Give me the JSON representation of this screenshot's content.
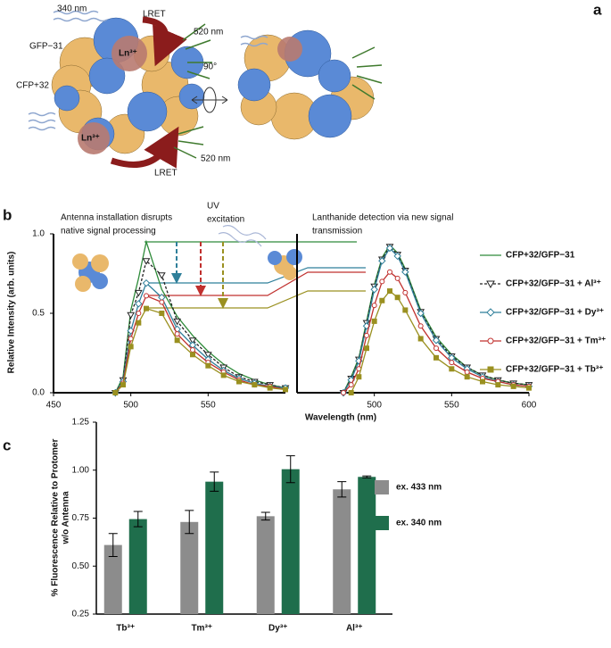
{
  "panel_a": {
    "label": "a",
    "texts": [
      "340 nm",
      "LRET",
      "Ln³⁺",
      "520 nm",
      "GFP−31",
      "CFP+32",
      "90°",
      "Ln³⁺",
      "520 nm",
      "LRET"
    ]
  },
  "chart_data": [
    {
      "type": "line",
      "panel_label": "b",
      "xlabel": "Wavelength (nm)",
      "ylabel": "Relative Intensity (arb. units)",
      "ylim": [
        0,
        1
      ],
      "yticks": [
        {
          "value": 0,
          "label": "0.0"
        },
        {
          "value": 0.5,
          "label": "0.5"
        },
        {
          "value": 1,
          "label": "1.0"
        }
      ],
      "annotations": [
        [
          "Antenna installation disrupts",
          "native signal processing"
        ],
        [
          "UV",
          "excitation"
        ],
        [
          "Lanthanide detection via new signal",
          "transmission"
        ]
      ],
      "series": [
        {
          "name": "CFP+32/GFP−31",
          "color": "#2e8b3a",
          "marker": "none",
          "dash": false
        },
        {
          "name": "CFP+32/GFP−31 + Al³⁺",
          "color": "#222222",
          "marker": "triangle",
          "dash": true
        },
        {
          "name": "CFP+32/GFP−31 + Dy³⁺",
          "color": "#2f7f9a",
          "marker": "diamond",
          "dash": false
        },
        {
          "name": "CFP+32/GFP−31 + Tm³⁺",
          "color": "#c0302e",
          "marker": "circle",
          "dash": false
        },
        {
          "name": "CFP+32/GFP−31 + Tb³⁺",
          "color": "#9a9020",
          "marker": "square",
          "dash": false
        }
      ],
      "panels": [
        {
          "xlim": [
            450,
            600
          ],
          "xticks": [
            450,
            500,
            550
          ],
          "x": [
            490,
            495,
            500,
            505,
            510,
            520,
            530,
            540,
            550,
            560,
            570,
            580,
            590,
            600
          ],
          "values": [
            [
              0,
              0.1,
              0.52,
              0.72,
              0.95,
              0.65,
              0.48,
              0.36,
              0.26,
              0.18,
              0.12,
              0.08,
              0.05,
              0.03
            ],
            [
              0,
              0.08,
              0.49,
              0.63,
              0.83,
              0.74,
              0.45,
              0.33,
              0.24,
              0.16,
              0.1,
              0.07,
              0.05,
              0.03
            ],
            [
              0,
              0.07,
              0.39,
              0.56,
              0.69,
              0.6,
              0.4,
              0.3,
              0.21,
              0.14,
              0.09,
              0.06,
              0.04,
              0.03
            ],
            [
              0,
              0.06,
              0.34,
              0.5,
              0.61,
              0.57,
              0.37,
              0.27,
              0.19,
              0.13,
              0.08,
              0.05,
              0.04,
              0.02
            ],
            [
              0,
              0.05,
              0.29,
              0.44,
              0.53,
              0.5,
              0.33,
              0.24,
              0.17,
              0.11,
              0.07,
              0.05,
              0.03,
              0.02
            ]
          ]
        },
        {
          "xlim": [
            450,
            600
          ],
          "xticks": [
            500,
            550,
            600
          ],
          "x": [
            480,
            485,
            490,
            495,
            500,
            505,
            510,
            515,
            520,
            530,
            540,
            550,
            560,
            570,
            580,
            590,
            600
          ],
          "values": [
            [
              0,
              0.1,
              0.22,
              0.45,
              0.68,
              0.85,
              0.93,
              0.88,
              0.78,
              0.52,
              0.35,
              0.24,
              0.16,
              0.11,
              0.08,
              0.06,
              0.05
            ],
            [
              0,
              0.09,
              0.21,
              0.44,
              0.67,
              0.84,
              0.92,
              0.87,
              0.77,
              0.51,
              0.34,
              0.23,
              0.16,
              0.11,
              0.08,
              0.06,
              0.05
            ],
            [
              0,
              0.08,
              0.2,
              0.42,
              0.65,
              0.83,
              0.91,
              0.86,
              0.76,
              0.5,
              0.33,
              0.22,
              0.15,
              0.1,
              0.07,
              0.05,
              0.04
            ],
            [
              0,
              0.05,
              0.15,
              0.36,
              0.55,
              0.7,
              0.76,
              0.72,
              0.63,
              0.42,
              0.28,
              0.19,
              0.13,
              0.09,
              0.07,
              0.05,
              0.04
            ],
            [
              null,
              0,
              0.1,
              0.28,
              0.45,
              0.58,
              0.64,
              0.6,
              0.52,
              0.34,
              0.22,
              0.15,
              0.1,
              0.07,
              0.05,
              0.04,
              0.03
            ]
          ]
        }
      ]
    },
    {
      "type": "bar",
      "panel_label": "c",
      "ylabel": [
        "% Fluorescence Relative to Protomer",
        "w/o Antenna"
      ],
      "categories": [
        "Tb³⁺",
        "Tm³⁺",
        "Dy³⁺",
        "Al³⁺"
      ],
      "ylim": [
        0.25,
        1.25
      ],
      "yticks": [
        0.25,
        {
          "value": 0.5,
          "label": "0.50"
        },
        0.75,
        {
          "value": 1,
          "label": "1.00"
        },
        1.25
      ],
      "series": [
        {
          "name": "ex. 433 nm",
          "color": "#8c8c8c",
          "values": [
            0.61,
            0.73,
            0.76,
            0.9
          ],
          "errors": [
            0.06,
            0.06,
            0.02,
            0.04
          ]
        },
        {
          "name": "ex. 340 nm",
          "color": "#1f6e4c",
          "values": [
            0.745,
            0.94,
            1.005,
            0.965
          ],
          "errors": [
            0.04,
            0.05,
            0.07,
            0.005
          ]
        }
      ]
    }
  ]
}
